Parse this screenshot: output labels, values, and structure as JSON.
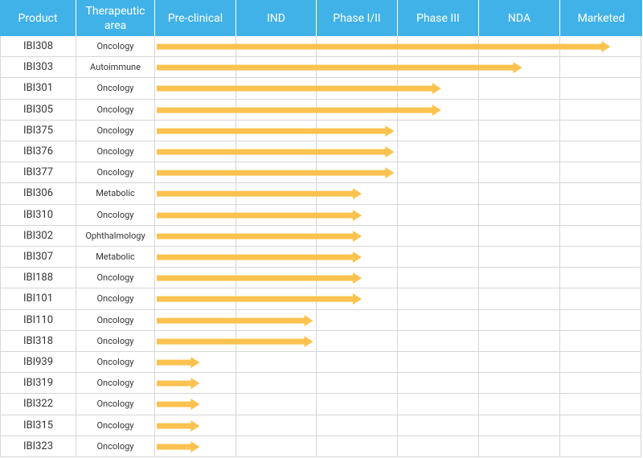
{
  "table": {
    "header": [
      "Product",
      "Therapeutic area",
      "Pre-clinical",
      "IND",
      "Phase I/II",
      "Phase III",
      "NDA",
      "Marketed"
    ],
    "rows": [
      {
        "product": "IBI308",
        "area": "Oncology",
        "progress": 5.62
      },
      {
        "product": "IBI303",
        "area": "Autoimmune",
        "progress": 4.53
      },
      {
        "product": "IBI301",
        "area": "Oncology",
        "progress": 3.53
      },
      {
        "product": "IBI305",
        "area": "Oncology",
        "progress": 3.53
      },
      {
        "product": "IBI375",
        "area": "Oncology",
        "progress": 2.95
      },
      {
        "product": "IBI376",
        "area": "Oncology",
        "progress": 2.95
      },
      {
        "product": "IBI377",
        "area": "Oncology",
        "progress": 2.95
      },
      {
        "product": "IBI306",
        "area": "Metabolic",
        "progress": 2.55
      },
      {
        "product": "IBI310",
        "area": "Oncology",
        "progress": 2.55
      },
      {
        "product": "IBI302",
        "area": "Ophthalmology",
        "progress": 2.55
      },
      {
        "product": "IBI307",
        "area": "Metabolic",
        "progress": 2.55
      },
      {
        "product": "IBI188",
        "area": "Oncology",
        "progress": 2.55
      },
      {
        "product": "IBI101",
        "area": "Oncology",
        "progress": 2.55
      },
      {
        "product": "IBI110",
        "area": "Oncology",
        "progress": 1.95
      },
      {
        "product": "IBI318",
        "area": "Oncology",
        "progress": 1.95
      },
      {
        "product": "IBI939",
        "area": "Oncology",
        "progress": 0.55
      },
      {
        "product": "IBI319",
        "area": "Oncology",
        "progress": 0.55
      },
      {
        "product": "IBI322",
        "area": "Oncology",
        "progress": 0.55
      },
      {
        "product": "IBI315",
        "area": "Oncology",
        "progress": 0.55
      },
      {
        "product": "IBI323",
        "area": "Oncology",
        "progress": 0.55
      }
    ]
  }
}
